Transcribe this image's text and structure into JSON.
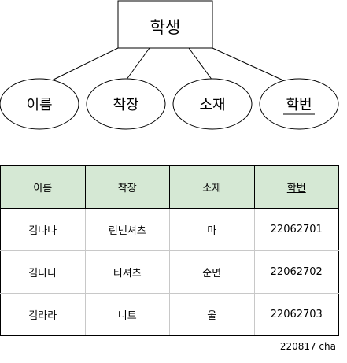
{
  "diagram": {
    "entity": "학생",
    "attributes": [
      "이름",
      "착장",
      "소재",
      "학번"
    ],
    "primary_key": "학번"
  },
  "table": {
    "headers": [
      "이름",
      "착장",
      "소재",
      "학번"
    ],
    "rows": [
      [
        "김나나",
        "린넨셔츠",
        "마",
        "22062701"
      ],
      [
        "김다다",
        "티셔츠",
        "순면",
        "22062702"
      ],
      [
        "김라라",
        "니트",
        "울",
        "22062703"
      ]
    ]
  },
  "caption": "220817 cha"
}
